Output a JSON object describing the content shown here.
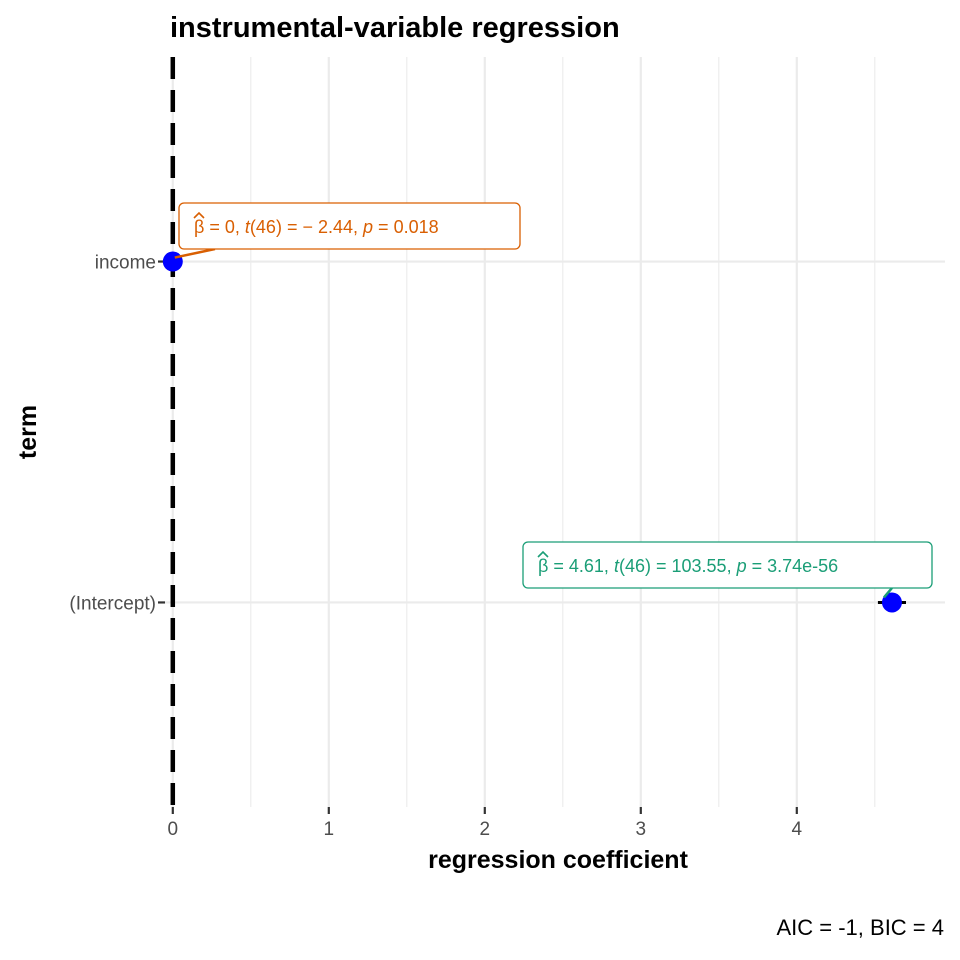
{
  "chart_data": {
    "type": "scatter",
    "title": "instrumental-variable regression",
    "xlabel": "regression coefficient",
    "ylabel": "term",
    "caption": "AIC = -1, BIC = 4",
    "xlim": [
      -0.05,
      4.95
    ],
    "x_ticks": [
      0,
      1,
      2,
      3,
      4
    ],
    "y_categories": [
      "(Intercept)",
      "income"
    ],
    "reference_line": {
      "x": 0,
      "style": "dashed"
    },
    "grid": true,
    "point_color": "#0000ff",
    "points": [
      {
        "term": "income",
        "estimate": 0,
        "conf_low": -0.005,
        "conf_high": 0.005,
        "label": {
          "beta": "0",
          "t_df": "46",
          "t": "− 2.44",
          "p": "0.018"
        },
        "label_color": "#d95f02"
      },
      {
        "term": "(Intercept)",
        "estimate": 4.61,
        "conf_low": 4.52,
        "conf_high": 4.7,
        "label": {
          "beta": "4.61",
          "t_df": "46",
          "t": "103.55",
          "p": "3.74e-56"
        },
        "label_color": "#1b9e77"
      }
    ]
  }
}
